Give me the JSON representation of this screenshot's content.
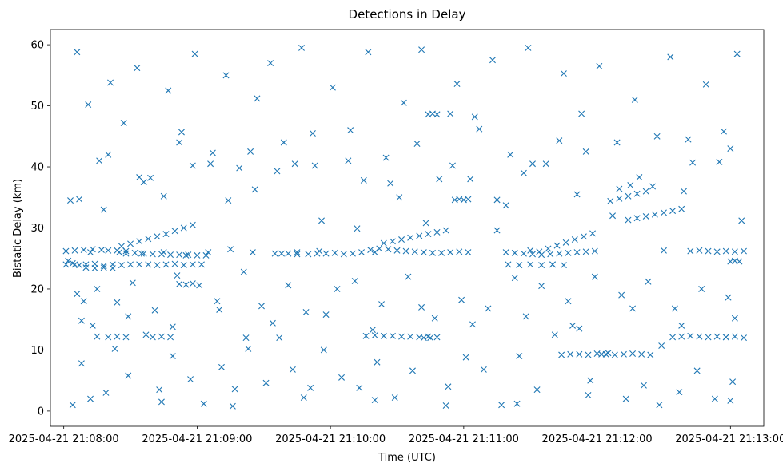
{
  "chart_data": {
    "type": "scatter",
    "title": "Detections in Delay",
    "xlabel": "Time (UTC)",
    "ylabel": "Bistatic Delay (km)",
    "x_ticks": [
      "2025-04-21 21:08:00",
      "2025-04-21 21:09:00",
      "2025-04-21 21:10:00",
      "2025-04-21 21:11:00",
      "2025-04-21 21:12:00",
      "2025-04-21 21:13:00"
    ],
    "y_ticks": [
      0,
      10,
      20,
      30,
      40,
      50,
      60
    ],
    "xlim": [
      "2025-04-21 21:07:54",
      "2025-04-21 21:13:15"
    ],
    "ylim": [
      -2.5,
      62.5
    ],
    "marker": "x",
    "grid": false,
    "color": "#1f77b4",
    "series": [
      {
        "x": [
          "2025-04-21 21:08:01",
          "2025-04-21 21:08:04",
          "2025-04-21 21:08:07",
          "2025-04-21 21:08:10",
          "2025-04-21 21:08:14",
          "2025-04-21 21:08:18",
          "2025-04-21 21:08:22",
          "2025-04-21 21:08:26",
          "2025-04-21 21:08:30",
          "2025-04-21 21:08:34",
          "2025-04-21 21:08:38",
          "2025-04-21 21:08:42",
          "2025-04-21 21:08:46",
          "2025-04-21 21:08:50",
          "2025-04-21 21:08:54",
          "2025-04-21 21:08:58",
          "2025-04-21 21:09:02",
          "2025-04-21 21:08:01",
          "2025-04-21 21:08:05",
          "2025-04-21 21:08:09",
          "2025-04-21 21:08:13",
          "2025-04-21 21:08:17",
          "2025-04-21 21:08:20",
          "2025-04-21 21:08:24",
          "2025-04-21 21:08:28",
          "2025-04-21 21:08:10",
          "2025-04-21 21:08:14",
          "2025-04-21 21:08:18",
          "2025-04-21 21:08:22",
          "2025-04-21 21:08:28",
          "2025-04-21 21:08:32",
          "2025-04-21 21:08:36",
          "2025-04-21 21:08:40",
          "2025-04-21 21:08:44",
          "2025-04-21 21:08:48",
          "2025-04-21 21:08:52",
          "2025-04-21 21:08:56",
          "2025-04-21 21:09:00",
          "2025-04-21 21:09:04",
          "2025-04-21 21:08:26",
          "2025-04-21 21:08:30",
          "2025-04-21 21:08:34",
          "2025-04-21 21:08:38",
          "2025-04-21 21:08:42",
          "2025-04-21 21:08:46",
          "2025-04-21 21:08:50",
          "2025-04-21 21:08:54",
          "2025-04-21 21:08:58",
          "2025-04-21 21:08:15",
          "2025-04-21 21:08:20",
          "2025-04-21 21:08:24",
          "2025-04-21 21:08:28",
          "2025-04-21 21:08:40",
          "2025-04-21 21:08:44",
          "2025-04-21 21:08:48",
          "2025-04-21 21:08:05",
          "2025-04-21 21:08:12",
          "2025-04-21 21:08:25",
          "2025-04-21 21:08:35",
          "2025-04-21 21:08:45",
          "2025-04-21 21:08:55",
          "2025-04-21 21:09:05",
          "2025-04-21 21:09:15",
          "2025-04-21 21:09:25",
          "2025-04-21 21:09:35",
          "2025-04-21 21:09:45",
          "2025-04-21 21:09:55",
          "2025-04-21 21:08:52",
          "2025-04-21 21:08:55",
          "2025-04-21 21:08:58",
          "2025-04-21 21:09:22",
          "2025-04-21 21:09:38",
          "2025-04-21 21:09:41",
          "2025-04-21 21:09:45",
          "2025-04-21 21:09:50",
          "2025-04-21 21:09:54",
          "2025-04-21 21:09:58",
          "2025-04-21 21:10:02",
          "2025-04-21 21:10:06",
          "2025-04-21 21:10:10",
          "2025-04-21 21:10:14",
          "2025-04-21 21:10:18",
          "2025-04-21 21:10:22",
          "2025-04-21 21:10:26",
          "2025-04-21 21:10:30",
          "2025-04-21 21:10:34",
          "2025-04-21 21:10:38",
          "2025-04-21 21:10:42",
          "2025-04-21 21:10:46",
          "2025-04-21 21:10:50",
          "2025-04-21 21:10:54",
          "2025-04-21 21:10:58",
          "2025-04-21 21:11:02",
          "2025-04-21 21:10:20",
          "2025-04-21 21:10:24",
          "2025-04-21 21:10:28",
          "2025-04-21 21:10:32",
          "2025-04-21 21:10:36",
          "2025-04-21 21:10:40",
          "2025-04-21 21:10:44",
          "2025-04-21 21:10:48",
          "2025-04-21 21:10:52",
          "2025-04-21 21:10:12",
          "2025-04-21 21:10:16",
          "2025-04-21 21:10:20",
          "2025-04-21 21:10:24",
          "2025-04-21 21:10:28",
          "2025-04-21 21:10:32",
          "2025-04-21 21:10:36",
          "2025-04-21 21:10:40",
          "2025-04-21 21:10:44",
          "2025-04-21 21:10:48",
          "2025-04-21 21:10:42",
          "2025-04-21 21:10:44",
          "2025-04-21 21:10:46",
          "2025-04-21 21:10:48",
          "2025-04-21 21:10:54",
          "2025-04-21 21:10:56",
          "2025-04-21 21:10:58",
          "2025-04-21 21:11:00",
          "2025-04-21 21:11:02",
          "2025-04-21 21:11:15",
          "2025-04-21 21:11:19",
          "2025-04-21 21:11:23",
          "2025-04-21 21:11:27",
          "2025-04-21 21:11:31",
          "2025-04-21 21:11:35",
          "2025-04-21 21:11:39",
          "2025-04-21 21:11:43",
          "2025-04-21 21:11:47",
          "2025-04-21 21:11:51",
          "2025-04-21 21:11:55",
          "2025-04-21 21:11:59",
          "2025-04-21 21:11:30",
          "2025-04-21 21:11:34",
          "2025-04-21 21:11:38",
          "2025-04-21 21:11:42",
          "2025-04-21 21:11:46",
          "2025-04-21 21:11:50",
          "2025-04-21 21:11:54",
          "2025-04-21 21:11:58",
          "2025-04-21 21:11:15",
          "2025-04-21 21:11:20",
          "2025-04-21 21:11:25",
          "2025-04-21 21:11:30",
          "2025-04-21 21:11:35",
          "2025-04-21 21:11:40",
          "2025-04-21 21:11:45",
          "2025-04-21 21:11:40",
          "2025-04-21 21:11:44",
          "2025-04-21 21:11:48",
          "2025-04-21 21:11:52",
          "2025-04-21 21:11:56",
          "2025-04-21 21:12:00",
          "2025-04-21 21:12:04",
          "2025-04-21 21:12:08",
          "2025-04-21 21:12:12",
          "2025-04-21 21:12:16",
          "2025-04-21 21:12:20",
          "2025-04-21 21:12:24",
          "2025-04-21 21:12:02",
          "2025-04-21 21:12:06",
          "2025-04-21 21:12:10",
          "2025-04-21 21:12:14",
          "2025-04-21 21:12:18",
          "2025-04-21 21:12:22",
          "2025-04-21 21:12:10",
          "2025-04-21 21:12:14",
          "2025-04-21 21:12:18",
          "2025-04-21 21:12:22",
          "2025-04-21 21:12:26",
          "2025-04-21 21:12:30",
          "2025-04-21 21:12:34",
          "2025-04-21 21:12:38",
          "2025-04-21 21:12:42",
          "2025-04-21 21:12:46",
          "2025-04-21 21:12:50",
          "2025-04-21 21:12:54",
          "2025-04-21 21:12:58",
          "2025-04-21 21:13:02",
          "2025-04-21 21:13:06",
          "2025-04-21 21:12:30",
          "2025-04-21 21:12:34",
          "2025-04-21 21:12:38",
          "2025-04-21 21:12:42",
          "2025-04-21 21:12:46",
          "2025-04-21 21:12:50",
          "2025-04-21 21:12:54",
          "2025-04-21 21:12:58",
          "2025-04-21 21:13:02",
          "2025-04-21 21:13:06",
          "2025-04-21 21:12:58",
          "2025-04-21 21:13:00",
          "2025-04-21 21:13:02",
          "2025-04-21 21:13:04",
          "2025-04-21 21:08:02",
          "2025-04-21 21:08:06",
          "2025-04-21 21:08:11",
          "2025-04-21 21:08:16",
          "2025-04-21 21:08:21",
          "2025-04-21 21:08:27",
          "2025-04-21 21:08:33",
          "2025-04-21 21:08:39",
          "2025-04-21 21:08:47",
          "2025-04-21 21:08:53",
          "2025-04-21 21:08:59",
          "2025-04-21 21:09:07",
          "2025-04-21 21:09:13",
          "2025-04-21 21:09:19",
          "2025-04-21 21:09:27",
          "2025-04-21 21:09:33",
          "2025-04-21 21:09:39",
          "2025-04-21 21:09:47",
          "2025-04-21 21:09:53",
          "2025-04-21 21:10:01",
          "2025-04-21 21:10:09",
          "2025-04-21 21:10:17",
          "2025-04-21 21:10:25",
          "2025-04-21 21:10:33",
          "2025-04-21 21:10:41",
          "2025-04-21 21:10:49",
          "2025-04-21 21:10:57",
          "2025-04-21 21:11:05",
          "2025-04-21 21:11:13",
          "2025-04-21 21:11:21",
          "2025-04-21 21:11:29",
          "2025-04-21 21:11:37",
          "2025-04-21 21:11:45",
          "2025-04-21 21:11:53",
          "2025-04-21 21:12:01",
          "2025-04-21 21:12:09",
          "2025-04-21 21:12:17",
          "2025-04-21 21:12:25",
          "2025-04-21 21:12:33",
          "2025-04-21 21:12:41",
          "2025-04-21 21:12:49",
          "2025-04-21 21:12:57",
          "2025-04-21 21:13:03",
          "2025-04-21 21:08:03",
          "2025-04-21 21:08:08",
          "2025-04-21 21:08:13",
          "2025-04-21 21:08:19",
          "2025-04-21 21:08:23",
          "2025-04-21 21:08:29",
          "2025-04-21 21:08:37",
          "2025-04-21 21:08:43",
          "2025-04-21 21:08:49",
          "2025-04-21 21:08:57",
          "2025-04-21 21:09:03",
          "2025-04-21 21:09:11",
          "2025-04-21 21:09:17",
          "2025-04-21 21:09:23",
          "2025-04-21 21:09:31",
          "2025-04-21 21:09:37",
          "2025-04-21 21:09:43",
          "2025-04-21 21:09:51",
          "2025-04-21 21:09:57",
          "2025-04-21 21:10:05",
          "2025-04-21 21:10:13",
          "2025-04-21 21:10:21",
          "2025-04-21 21:10:29",
          "2025-04-21 21:10:37",
          "2025-04-21 21:10:45",
          "2025-04-21 21:10:53",
          "2025-04-21 21:11:01",
          "2025-04-21 21:11:09",
          "2025-04-21 21:11:17",
          "2025-04-21 21:11:25",
          "2025-04-21 21:11:33",
          "2025-04-21 21:11:41",
          "2025-04-21 21:11:49",
          "2025-04-21 21:11:57",
          "2025-04-21 21:12:05",
          "2025-04-21 21:12:13",
          "2025-04-21 21:12:21",
          "2025-04-21 21:12:29",
          "2025-04-21 21:12:37",
          "2025-04-21 21:12:45",
          "2025-04-21 21:12:53",
          "2025-04-21 21:13:01",
          "2025-04-21 21:08:04",
          "2025-04-21 21:08:09",
          "2025-04-21 21:08:15",
          "2025-04-21 21:08:24",
          "2025-04-21 21:08:31",
          "2025-04-21 21:08:41",
          "2025-04-21 21:08:51",
          "2025-04-21 21:09:01",
          "2025-04-21 21:09:09",
          "2025-04-21 21:09:21",
          "2025-04-21 21:09:29",
          "2025-04-21 21:09:41",
          "2025-04-21 21:09:49",
          "2025-04-21 21:10:03",
          "2025-04-21 21:10:11",
          "2025-04-21 21:10:23",
          "2025-04-21 21:10:35",
          "2025-04-21 21:10:47",
          "2025-04-21 21:10:59",
          "2025-04-21 21:11:11",
          "2025-04-21 21:11:23",
          "2025-04-21 21:11:35",
          "2025-04-21 21:11:47",
          "2025-04-21 21:11:59",
          "2025-04-21 21:12:11",
          "2025-04-21 21:12:23",
          "2025-04-21 21:12:35",
          "2025-04-21 21:12:47",
          "2025-04-21 21:12:59",
          "2025-04-21 21:08:06",
          "2025-04-21 21:08:18",
          "2025-04-21 21:08:34",
          "2025-04-21 21:08:45",
          "2025-04-21 21:08:58",
          "2025-04-21 21:09:14",
          "2025-04-21 21:09:26",
          "2025-04-21 21:09:44",
          "2025-04-21 21:09:56",
          "2025-04-21 21:10:15",
          "2025-04-21 21:10:31",
          "2025-04-21 21:10:43",
          "2025-04-21 21:11:03",
          "2025-04-21 21:11:19",
          "2025-04-21 21:11:31",
          "2025-04-21 21:11:51",
          "2025-04-21 21:12:07",
          "2025-04-21 21:12:19",
          "2025-04-21 21:12:39",
          "2025-04-21 21:12:55",
          "2025-04-21 21:13:05",
          "2025-04-21 21:08:07",
          "2025-04-21 21:08:20",
          "2025-04-21 21:08:36",
          "2025-04-21 21:08:52",
          "2025-04-21 21:09:06",
          "2025-04-21 21:09:24",
          "2025-04-21 21:09:36",
          "2025-04-21 21:09:52",
          "2025-04-21 21:10:08",
          "2025-04-21 21:10:27",
          "2025-04-21 21:10:39",
          "2025-04-21 21:10:55",
          "2025-04-21 21:11:07",
          "2025-04-21 21:11:27",
          "2025-04-21 21:11:43",
          "2025-04-21 21:11:55",
          "2025-04-21 21:12:15",
          "2025-04-21 21:12:27",
          "2025-04-21 21:12:43",
          "2025-04-21 21:13:00",
          "2025-04-21 21:08:08",
          "2025-04-21 21:08:29",
          "2025-04-21 21:08:49",
          "2025-04-21 21:09:10",
          "2025-04-21 21:09:34",
          "2025-04-21 21:09:58",
          "2025-04-21 21:10:19",
          "2025-04-21 21:10:41",
          "2025-04-21 21:11:04",
          "2025-04-21 21:11:28",
          "2025-04-21 21:11:52",
          "2025-04-21 21:12:16",
          "2025-04-21 21:12:38",
          "2025-04-21 21:13:02",
          "2025-04-21 21:08:12",
          "2025-04-21 21:08:44",
          "2025-04-21 21:09:16",
          "2025-04-21 21:09:48",
          "2025-04-21 21:10:20",
          "2025-04-21 21:10:52",
          "2025-04-21 21:11:24",
          "2025-04-21 21:11:56",
          "2025-04-21 21:12:28",
          "2025-04-21 21:13:00"
        ],
        "y": [
          24.0,
          24.2,
          23.9,
          24.0,
          24.1,
          23.8,
          24.0,
          23.9,
          24.0,
          24.0,
          24.0,
          23.9,
          24.0,
          24.1,
          23.9,
          24.0,
          24.0,
          26.2,
          26.3,
          26.4,
          26.5,
          26.4,
          26.3,
          26.3,
          26.2,
          23.5,
          23.4,
          23.5,
          23.4,
          25.8,
          25.9,
          25.8,
          25.7,
          25.7,
          25.6,
          25.6,
          25.6,
          25.5,
          25.5,
          27.0,
          27.4,
          27.8,
          28.2,
          28.6,
          29.0,
          29.5,
          30.0,
          30.5,
          12.2,
          12.1,
          12.2,
          12.1,
          12.1,
          12.2,
          12.1,
          24.0,
          26.0,
          26.0,
          25.8,
          26.0,
          25.5,
          26.0,
          26.5,
          26.0,
          25.8,
          26.0,
          26.2,
          20.8,
          20.7,
          20.9,
          12.0,
          25.8,
          25.8,
          25.7,
          25.7,
          25.8,
          25.8,
          25.9,
          25.7,
          25.8,
          26.0,
          26.4,
          26.6,
          26.5,
          26.3,
          26.2,
          26.1,
          26.0,
          25.9,
          25.9,
          26.0,
          26.1,
          26.0,
          26.0,
          27.5,
          27.8,
          28.1,
          28.4,
          28.7,
          29.0,
          29.3,
          29.6,
          29.9,
          12.3,
          12.4,
          12.3,
          12.3,
          12.2,
          12.2,
          12.1,
          12.2,
          12.1,
          12.0,
          48.6,
          48.7,
          48.6,
          48.7,
          34.6,
          34.7,
          34.6,
          34.7,
          34.6,
          26.0,
          25.9,
          25.8,
          25.7,
          25.6,
          25.7,
          25.8,
          25.9,
          26.0,
          26.1,
          26.2,
          26.3,
          26.1,
          26.6,
          27.1,
          27.6,
          28.1,
          28.6,
          29.1,
          29.6,
          24.0,
          23.9,
          24.0,
          23.9,
          24.0,
          23.9,
          24.0,
          9.2,
          9.3,
          9.3,
          9.2,
          9.4,
          9.3,
          9.2,
          9.3,
          9.4,
          9.3,
          9.2,
          9.3,
          34.4,
          34.8,
          35.2,
          35.6,
          36.0,
          36.4,
          31.3,
          31.6,
          31.9,
          32.2,
          32.5,
          32.8,
          33.1,
          26.2,
          26.3,
          26.2,
          26.1,
          26.2,
          26.1,
          26.2,
          26.3,
          12.1,
          12.2,
          12.3,
          12.2,
          12.1,
          12.2,
          12.1,
          12.2,
          12.0,
          12.1,
          24.5,
          24.6,
          24.5,
          24.6,
          58.8,
          50.2,
          41.0,
          53.8,
          47.2,
          56.2,
          38.2,
          52.5,
          45.7,
          58.5,
          42.3,
          55.0,
          39.8,
          51.2,
          57.0,
          44.0,
          59.5,
          40.2,
          53.0,
          46.0,
          58.8,
          41.5,
          50.5,
          59.2,
          38.0,
          53.6,
          48.2,
          57.5,
          42.0,
          59.5,
          40.5,
          55.3,
          48.7,
          56.5,
          44.0,
          51.0,
          36.8,
          58.0,
          44.5,
          53.5,
          45.8,
          58.5,
          34.5,
          7.8,
          14.0,
          3.0,
          10.2,
          5.8,
          12.5,
          3.5,
          9.0,
          5.2,
          1.2,
          7.2,
          3.6,
          10.2,
          4.6,
          12.0,
          6.8,
          3.8,
          10.0,
          5.5,
          3.8,
          8.0,
          2.2,
          6.6,
          12.0,
          4.0,
          8.8,
          6.8,
          1.0,
          9.0,
          3.5,
          12.5,
          14.0,
          5.0,
          9.5,
          2.0,
          4.2,
          10.7,
          3.1,
          6.6,
          2.0,
          4.8,
          1.0,
          18.0,
          20.0,
          17.8,
          21.0,
          16.5,
          22.2,
          20.6,
          18.0,
          22.8,
          17.2,
          20.6,
          16.2,
          20.0,
          21.3,
          17.5,
          22.0,
          15.2,
          18.2,
          16.8,
          21.8,
          20.5,
          18.0,
          22.0,
          19.0,
          21.2,
          16.8,
          20.0,
          18.6,
          19.2,
          33.0,
          38.3,
          35.2,
          40.2,
          34.5,
          36.3,
          40.5,
          31.2,
          37.8,
          35.0,
          30.8,
          38.0,
          33.7,
          40.5,
          35.5,
          32.0,
          38.3,
          36.0,
          40.8,
          31.2,
          34.7,
          42.0,
          37.5,
          44.0,
          40.5,
          42.5,
          39.3,
          45.5,
          41.0,
          37.3,
          43.8,
          40.2,
          46.2,
          39.0,
          44.3,
          42.5,
          37.0,
          45.0,
          40.7,
          43.0,
          14.8,
          15.5,
          13.8,
          16.6,
          14.4,
          15.8,
          13.3,
          17.0,
          14.2,
          15.5,
          13.5,
          16.8,
          14.0,
          15.2,
          2.0,
          1.5,
          0.8,
          2.2,
          1.8,
          0.9,
          1.2,
          2.6,
          1.0,
          1.7
        ]
      }
    ]
  }
}
